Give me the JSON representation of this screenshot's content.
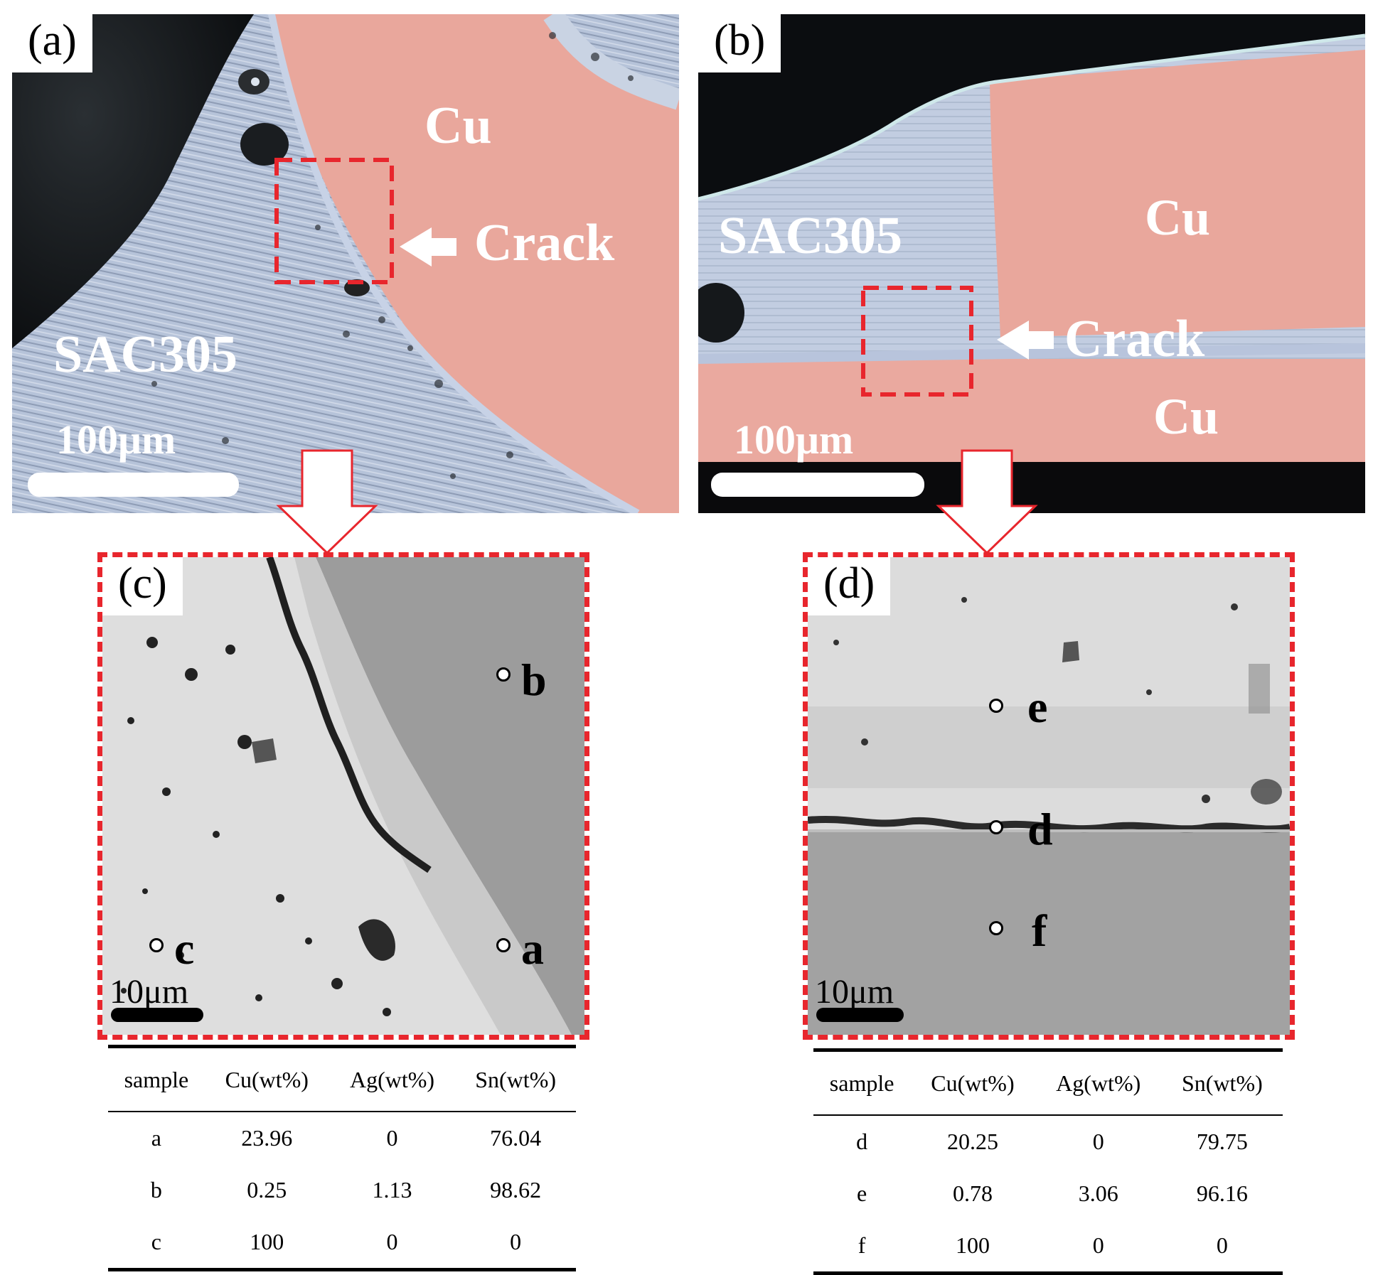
{
  "panels": {
    "a": {
      "label": "(a)",
      "cu_label": "Cu",
      "crack_label": "Crack",
      "solder_label": "SAC305",
      "scale_label": "100μm"
    },
    "b": {
      "label": "(b)",
      "cu_top_label": "Cu",
      "cu_bottom_label": "Cu",
      "crack_label": "Crack",
      "solder_label": "SAC305",
      "scale_label": "100μm"
    },
    "c": {
      "label": "(c)",
      "points": [
        "b",
        "a",
        "c"
      ],
      "scale_label": "10μm"
    },
    "d": {
      "label": "(d)",
      "points": [
        "e",
        "d",
        "f"
      ],
      "scale_label": "10μm"
    }
  },
  "table_c": {
    "headers": [
      "sample",
      "Cu(wt%)",
      "Ag(wt%)",
      "Sn(wt%)"
    ],
    "rows": [
      [
        "a",
        "23.96",
        "0",
        "76.04"
      ],
      [
        "b",
        "0.25",
        "1.13",
        "98.62"
      ],
      [
        "c",
        "100",
        "0",
        "0"
      ]
    ]
  },
  "table_d": {
    "headers": [
      "sample",
      "Cu(wt%)",
      "Ag(wt%)",
      "Sn(wt%)"
    ],
    "rows": [
      [
        "d",
        "20.25",
        "0",
        "79.75"
      ],
      [
        "e",
        "0.78",
        "3.06",
        "96.16"
      ],
      [
        "f",
        "100",
        "0",
        "0"
      ]
    ]
  },
  "colors": {
    "copper": "#e9a79c",
    "solder": "#b9c6dc",
    "highlight": "#e8262d",
    "sem_light": "#dcdcdc",
    "sem_dark": "#9a9a9a"
  }
}
